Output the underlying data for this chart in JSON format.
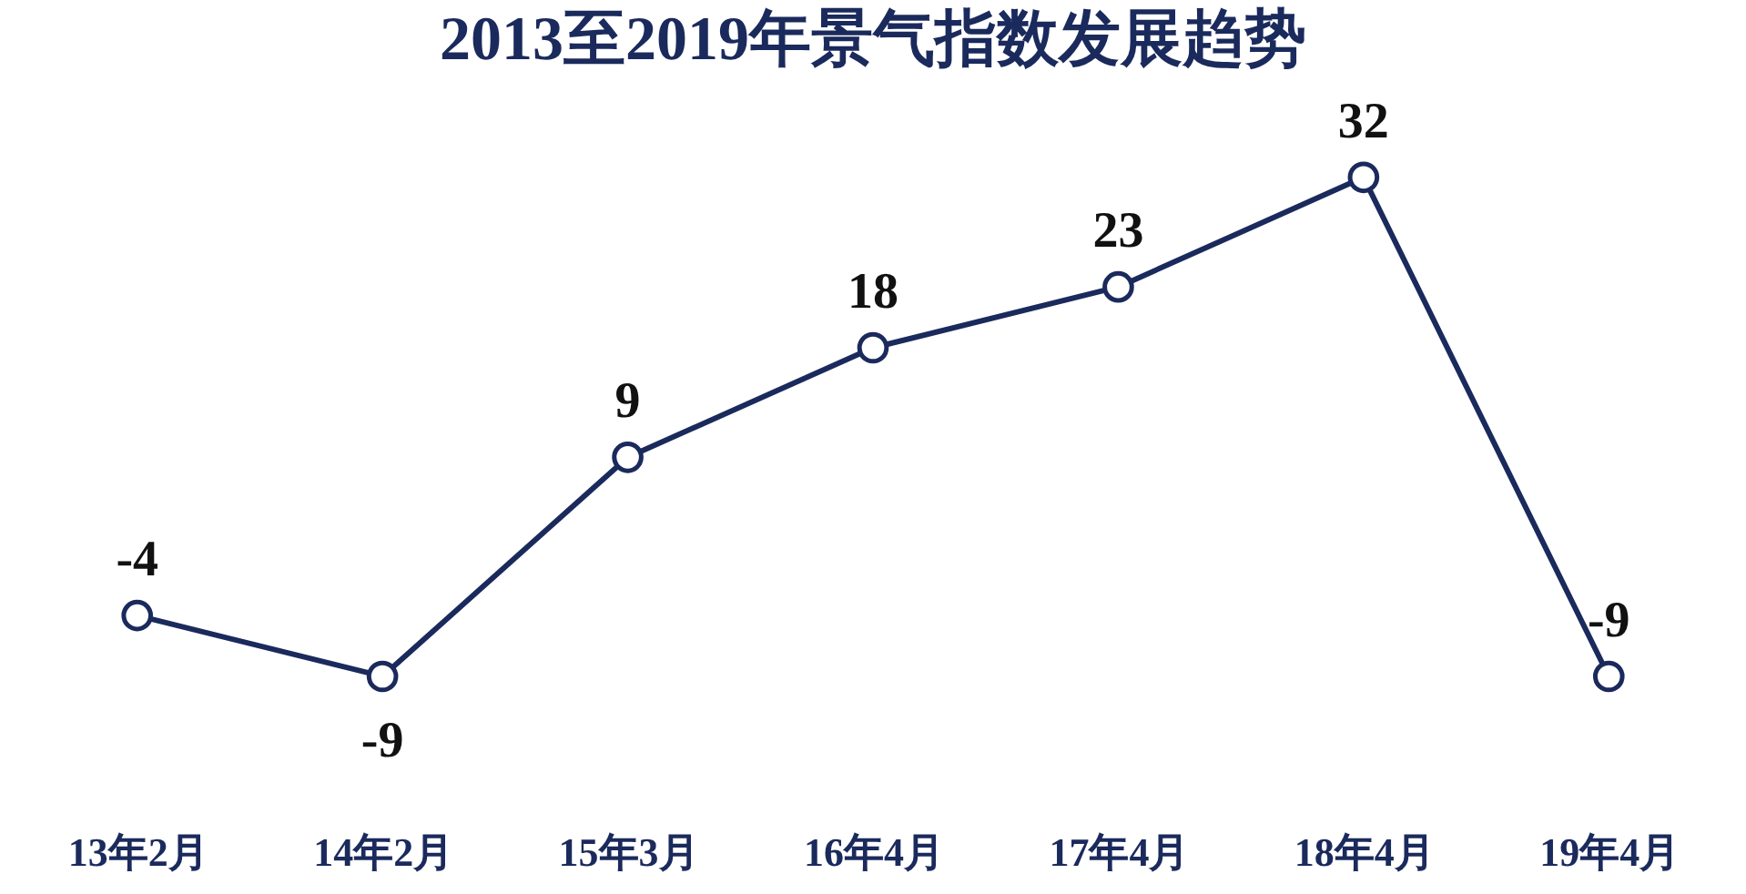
{
  "chart_data": {
    "type": "line",
    "title": "2013至2019年景气指数发展趋势",
    "categories": [
      "13年2月",
      "14年2月",
      "15年3月",
      "16年4月",
      "17年4月",
      "18年4月",
      "19年4月"
    ],
    "series": [
      {
        "color": "#1b2a5c",
        "values": [
          -4,
          -9,
          9,
          18,
          23,
          32,
          -9
        ]
      }
    ],
    "data_labels": true,
    "marker": "circle",
    "line_style": "solid",
    "grid": false,
    "legend": false,
    "tick_labels": "x"
  }
}
